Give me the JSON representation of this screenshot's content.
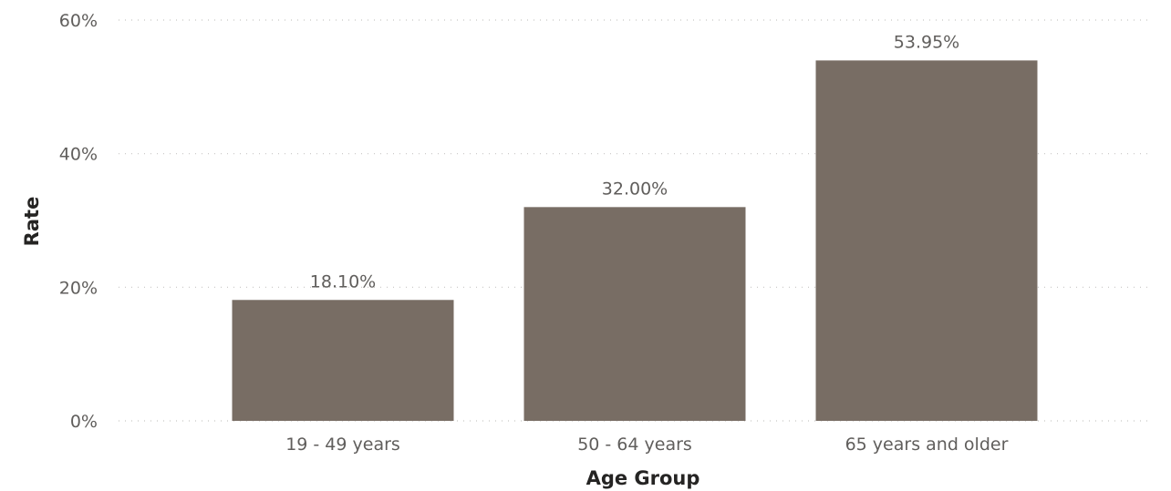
{
  "chart_data": {
    "type": "bar",
    "categories": [
      "19 - 49 years",
      "50 - 64 years",
      "65 years and older"
    ],
    "values": [
      18.1,
      32.0,
      53.95
    ],
    "data_labels": [
      "18.10%",
      "32.00%",
      "53.95%"
    ],
    "title": "",
    "xlabel": "Age Group",
    "ylabel": "Rate",
    "ylim": [
      0,
      60
    ],
    "yticks": [
      0,
      20,
      40,
      60
    ],
    "ytick_labels": [
      "0%",
      "20%",
      "40%",
      "60%"
    ],
    "grid": true,
    "bar_color": "#786d64"
  }
}
